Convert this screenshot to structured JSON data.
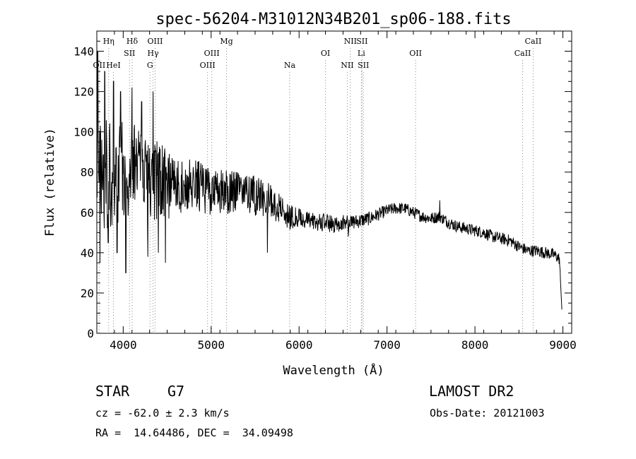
{
  "chart_data": {
    "type": "line",
    "title": "spec-56204-M31012N34B201_sp06-188.fits",
    "xlabel": "Wavelength (Å)",
    "ylabel": "Flux (relative)",
    "xlim": [
      3700,
      9100
    ],
    "ylim": [
      0,
      150
    ],
    "xticks": [
      4000,
      5000,
      6000,
      7000,
      8000,
      9000
    ],
    "yticks": [
      0,
      20,
      40,
      60,
      80,
      100,
      120,
      140
    ],
    "grid": false,
    "line_color": "#000000",
    "marker_color": "#888888",
    "continuum": [
      [
        3700,
        75
      ],
      [
        3800,
        80
      ],
      [
        3900,
        78
      ],
      [
        4000,
        80
      ],
      [
        4100,
        82
      ],
      [
        4200,
        78
      ],
      [
        4300,
        75
      ],
      [
        4400,
        76
      ],
      [
        4500,
        74
      ],
      [
        4600,
        73
      ],
      [
        4700,
        72
      ],
      [
        4800,
        74
      ],
      [
        4900,
        72
      ],
      [
        5000,
        70
      ],
      [
        5100,
        70
      ],
      [
        5200,
        70
      ],
      [
        5300,
        72
      ],
      [
        5400,
        71
      ],
      [
        5500,
        68
      ],
      [
        5600,
        67
      ],
      [
        5700,
        65
      ],
      [
        5800,
        62
      ],
      [
        5900,
        58
      ],
      [
        6000,
        57
      ],
      [
        6100,
        56
      ],
      [
        6200,
        55
      ],
      [
        6300,
        55
      ],
      [
        6400,
        54
      ],
      [
        6500,
        55
      ],
      [
        6600,
        55
      ],
      [
        6700,
        56
      ],
      [
        6800,
        57
      ],
      [
        6900,
        59
      ],
      [
        7000,
        61
      ],
      [
        7100,
        62
      ],
      [
        7200,
        62
      ],
      [
        7300,
        60
      ],
      [
        7400,
        58
      ],
      [
        7500,
        57
      ],
      [
        7600,
        58
      ],
      [
        7700,
        55
      ],
      [
        7800,
        53
      ],
      [
        7900,
        52
      ],
      [
        8000,
        51
      ],
      [
        8100,
        50
      ],
      [
        8200,
        48
      ],
      [
        8300,
        47
      ],
      [
        8400,
        46
      ],
      [
        8500,
        43
      ],
      [
        8600,
        41
      ],
      [
        8700,
        41
      ],
      [
        8800,
        40
      ],
      [
        8900,
        39
      ],
      [
        8960,
        37
      ],
      [
        8990,
        10
      ]
    ],
    "noise": [
      [
        3700,
        30
      ],
      [
        4000,
        25
      ],
      [
        4300,
        22
      ],
      [
        4600,
        15
      ],
      [
        5000,
        12
      ],
      [
        5500,
        10
      ],
      [
        5800,
        8
      ],
      [
        6000,
        5
      ],
      [
        6500,
        4
      ],
      [
        7000,
        3
      ],
      [
        7500,
        3
      ],
      [
        8000,
        3
      ],
      [
        8500,
        3
      ],
      [
        8990,
        3
      ]
    ],
    "features": [
      [
        3710,
        140
      ],
      [
        3735,
        35
      ],
      [
        3790,
        130
      ],
      [
        3830,
        45
      ],
      [
        3890,
        125
      ],
      [
        3930,
        40
      ],
      [
        3970,
        120
      ],
      [
        4030,
        30
      ],
      [
        4100,
        122
      ],
      [
        4210,
        115
      ],
      [
        4280,
        38
      ],
      [
        4340,
        120
      ],
      [
        4400,
        40
      ],
      [
        4480,
        35
      ],
      [
        5640,
        40
      ],
      [
        5900,
        52
      ],
      [
        6560,
        48
      ],
      [
        7600,
        66
      ],
      [
        7620,
        58
      ]
    ],
    "line_markers": [
      {
        "label": "OII",
        "x": 3727,
        "row": 3
      },
      {
        "label": "Hη",
        "x": 3835,
        "row": 1
      },
      {
        "label": "HeI",
        "x": 3889,
        "row": 3
      },
      {
        "label": "Hδ",
        "x": 4102,
        "row": 1
      },
      {
        "label": "SII",
        "x": 4072,
        "row": 2
      },
      {
        "label": "OIII",
        "x": 4363,
        "row": 1
      },
      {
        "label": "Hγ",
        "x": 4340,
        "row": 2
      },
      {
        "label": "G",
        "x": 4305,
        "row": 3
      },
      {
        "label": "Mg",
        "x": 5175,
        "row": 1
      },
      {
        "label": "OIII",
        "x": 5007,
        "row": 2
      },
      {
        "label": "OIII",
        "x": 4959,
        "row": 3
      },
      {
        "label": "Na",
        "x": 5893,
        "row": 3
      },
      {
        "label": "OI",
        "x": 6300,
        "row": 2
      },
      {
        "label": "NII",
        "x": 6583,
        "row": 1
      },
      {
        "label": "SII",
        "x": 6716,
        "row": 1
      },
      {
        "label": "Li",
        "x": 6708,
        "row": 2
      },
      {
        "label": "NII",
        "x": 6548,
        "row": 3
      },
      {
        "label": "SII",
        "x": 6731,
        "row": 3
      },
      {
        "label": "OII",
        "x": 7325,
        "row": 2
      },
      {
        "label": "CaII",
        "x": 8662,
        "row": 1
      },
      {
        "label": "CaII",
        "x": 8542,
        "row": 2
      }
    ]
  },
  "info": {
    "object_class": "STAR",
    "subclass": "G7",
    "survey": "LAMOST DR2",
    "redshift": "cz = -62.0 ± 2.3 km/s",
    "obs_date": "Obs-Date: 20121003",
    "coords": "RA =  14.64486, DEC =  34.09498"
  }
}
